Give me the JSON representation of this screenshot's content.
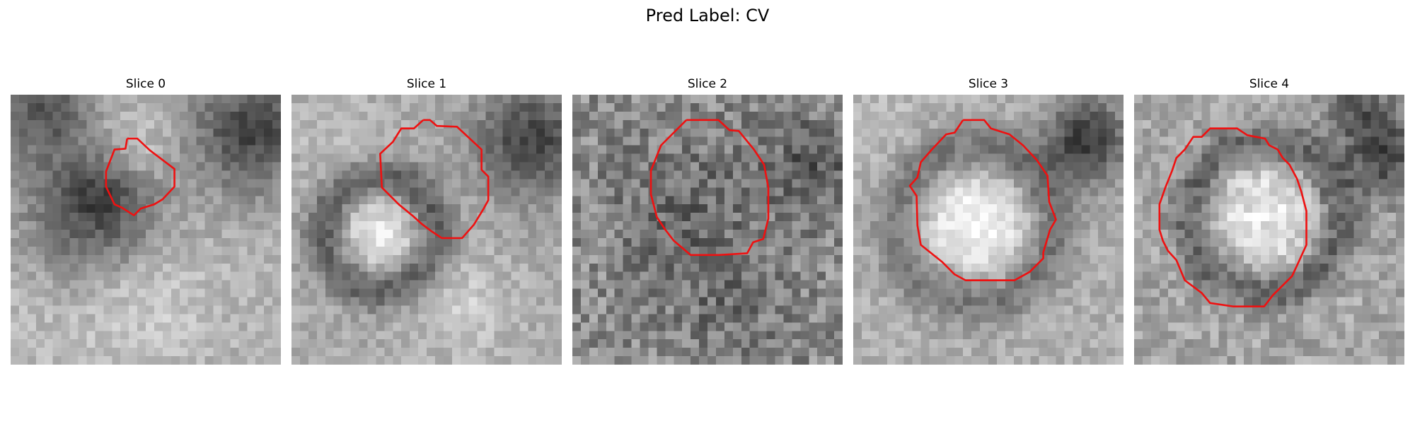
{
  "figure": {
    "title": "Pred Label: CV"
  },
  "slices": [
    {
      "title": "Slice 0"
    },
    {
      "title": "Slice 1"
    },
    {
      "title": "Slice 2"
    },
    {
      "title": "Slice 3"
    },
    {
      "title": "Slice 4"
    }
  ],
  "colors": {
    "contour": "#ee1111",
    "background": "#ffffff"
  }
}
